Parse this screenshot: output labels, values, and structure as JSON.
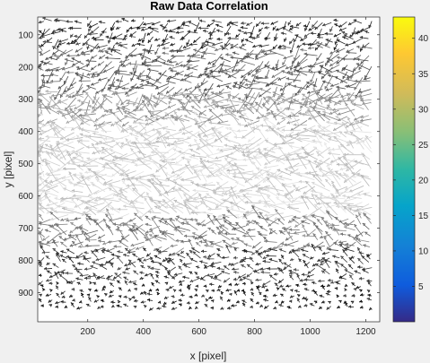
{
  "chart_data": {
    "type": "quiver",
    "title": "Raw Data Correlation",
    "xlabel": "x [pixel]",
    "ylabel": "y [pixel]",
    "xlim": [
      20,
      1250
    ],
    "ylim": [
      990,
      45
    ],
    "y_reversed": true,
    "xticks": [
      200,
      400,
      600,
      800,
      1000,
      1200
    ],
    "yticks": [
      100,
      200,
      300,
      400,
      500,
      600,
      700,
      800,
      900
    ],
    "vector_color_scale": "grayscale, darker = larger displacement (rows near y=100-250 and y=700-900), lighter = smaller (y=400-650)",
    "colorbar": {
      "colormap": "parula",
      "range": [
        0,
        43
      ],
      "ticks": [
        5,
        10,
        15,
        20,
        25,
        30,
        35,
        40
      ]
    }
  },
  "colors": {
    "figure_bg": "#f0f0f0",
    "axes_bg": "#ffffff",
    "axes_edge": "#262626"
  }
}
